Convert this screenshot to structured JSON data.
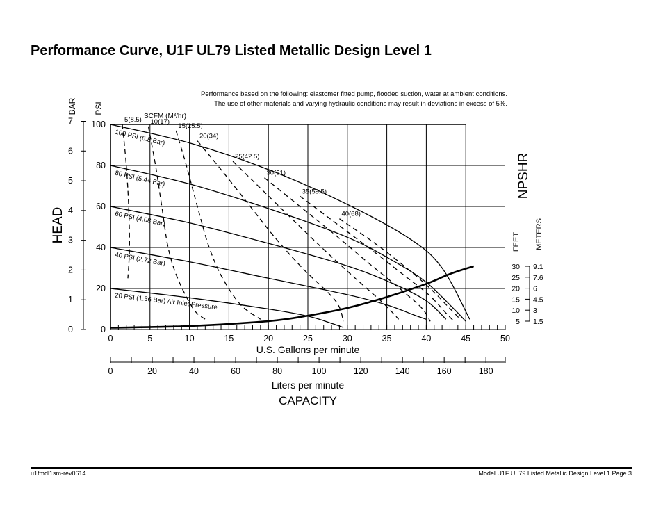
{
  "page": {
    "title": "Performance Curve, U1F UL79 Listed Metallic Design Level 1",
    "note_line1": "Performance based on the following: elastomer fitted pump, flooded suction, water at ambient conditions.",
    "note_line2": "The use of other materials and varying hydraulic conditions may result in deviations in excess of 5%.",
    "footer_left": "u1fmdl1sm-rev0614",
    "footer_right": "Model U1F UL79 Listed Metallic Design Level 1   Page 3"
  },
  "chart_data": {
    "type": "line",
    "title": "",
    "xlabel": "U.S. Gallons per minute",
    "xlabel2": "Liters per minute",
    "xlabel_main": "CAPACITY",
    "ylabel": "HEAD",
    "ylabel_psi": "PSI",
    "ylabel_bar": "BAR",
    "npshr_label": "NPSHR",
    "npshr_feet_label": "FEET",
    "npshr_meters_label": "METERS",
    "air_label": "SCFM (M³/hr)",
    "xlim": [
      0,
      50
    ],
    "ylim": [
      0,
      100
    ],
    "grid": true,
    "x_ticks": [
      "0",
      "5",
      "10",
      "15",
      "20",
      "25",
      "30",
      "35",
      "40",
      "45",
      "50"
    ],
    "psi_ticks": [
      "0",
      "20",
      "40",
      "60",
      "80",
      "100"
    ],
    "bar_ticks": [
      "0",
      "1",
      "2",
      "3",
      "4",
      "5",
      "6",
      "7"
    ],
    "liters_ticks": [
      "0",
      "20",
      "40",
      "60",
      "80",
      "100",
      "120",
      "140",
      "160",
      "180"
    ],
    "npshr_feet_ticks": [
      "5",
      "10",
      "15",
      "20",
      "25",
      "30"
    ],
    "npshr_meters_ticks": [
      "1.5",
      "3",
      "4.5",
      "6",
      "7.6",
      "9.1"
    ],
    "pressure_curves": [
      {
        "label": "100 PSI (6.8 Bar)",
        "x": [
          0,
          10,
          20,
          30,
          38,
          42,
          45.5
        ],
        "y": [
          100,
          91,
          78,
          61,
          44,
          30,
          5
        ]
      },
      {
        "label": "80 PSI (5.44 Bar)",
        "x": [
          0,
          10,
          20,
          30,
          36,
          40,
          43.5,
          45
        ],
        "y": [
          80,
          71,
          59,
          45,
          33,
          23,
          10,
          4
        ]
      },
      {
        "label": "60 PSI (4.08 Bar)",
        "x": [
          0,
          10,
          20,
          30,
          36,
          40,
          42.5
        ],
        "y": [
          60,
          52,
          42,
          31,
          22,
          14,
          5
        ]
      },
      {
        "label": "40 PSI (2.72 Bar)",
        "x": [
          0,
          10,
          20,
          30,
          35,
          38.5,
          40
        ],
        "y": [
          40,
          33,
          25,
          17,
          12,
          7,
          5
        ]
      },
      {
        "label": "20 PSI (1.36 Bar) Air Inlet Pressure",
        "x": [
          0,
          10,
          20,
          25,
          28,
          29.5
        ],
        "y": [
          20,
          15.5,
          10,
          6.5,
          3,
          1
        ]
      }
    ],
    "air_curves": [
      {
        "label": "5(8.5)",
        "x": [
          1.5,
          2.0,
          2.3,
          2.4,
          2.2
        ],
        "y": [
          100,
          80,
          60,
          40,
          25
        ]
      },
      {
        "label": "10(17)",
        "x": [
          4.8,
          5.7,
          6.5,
          7.3,
          8.5,
          10.5,
          12.0
        ],
        "y": [
          99,
          80,
          60,
          40,
          25,
          10,
          5
        ]
      },
      {
        "label": "15(25.5)",
        "x": [
          8.3,
          9.6,
          11.0,
          12.5,
          14.2,
          16.5,
          19.0
        ],
        "y": [
          97,
          80,
          60,
          40,
          25,
          12,
          5
        ]
      },
      {
        "label": "20(34)",
        "x": [
          11.0,
          14.0,
          17.3,
          20.8,
          24.3,
          28.5,
          29.5
        ],
        "y": [
          92,
          78,
          62,
          45,
          30,
          14,
          4
        ]
      },
      {
        "label": "25(42.5)",
        "x": [
          15.5,
          19.5,
          23.5,
          27.3,
          31.0,
          34.5,
          36.5
        ],
        "y": [
          82,
          67,
          52,
          38,
          25,
          13,
          5
        ]
      },
      {
        "label": "30(51)",
        "x": [
          19.5,
          24.0,
          28.5,
          32.5,
          36.0,
          39.3,
          40.5
        ],
        "y": [
          74,
          60,
          46,
          33,
          22,
          11,
          4
        ]
      },
      {
        "label": "35(59.5)",
        "x": [
          24.0,
          28.5,
          33.0,
          37.0,
          40.3,
          42.5,
          43.5
        ],
        "y": [
          65,
          52,
          39,
          27,
          17,
          8,
          4
        ]
      },
      {
        "label": "40(68)",
        "x": [
          29.0,
          33.5,
          37.5,
          40.5,
          42.8,
          44.3
        ],
        "y": [
          54,
          42,
          30,
          20,
          11,
          5
        ]
      }
    ],
    "npshr_curve": {
      "x": [
        0,
        10,
        20,
        25,
        30,
        35,
        40,
        43,
        46
      ],
      "y": [
        2,
        2.8,
        5,
        7.5,
        11,
        16,
        22,
        26.5,
        30
      ]
    }
  }
}
